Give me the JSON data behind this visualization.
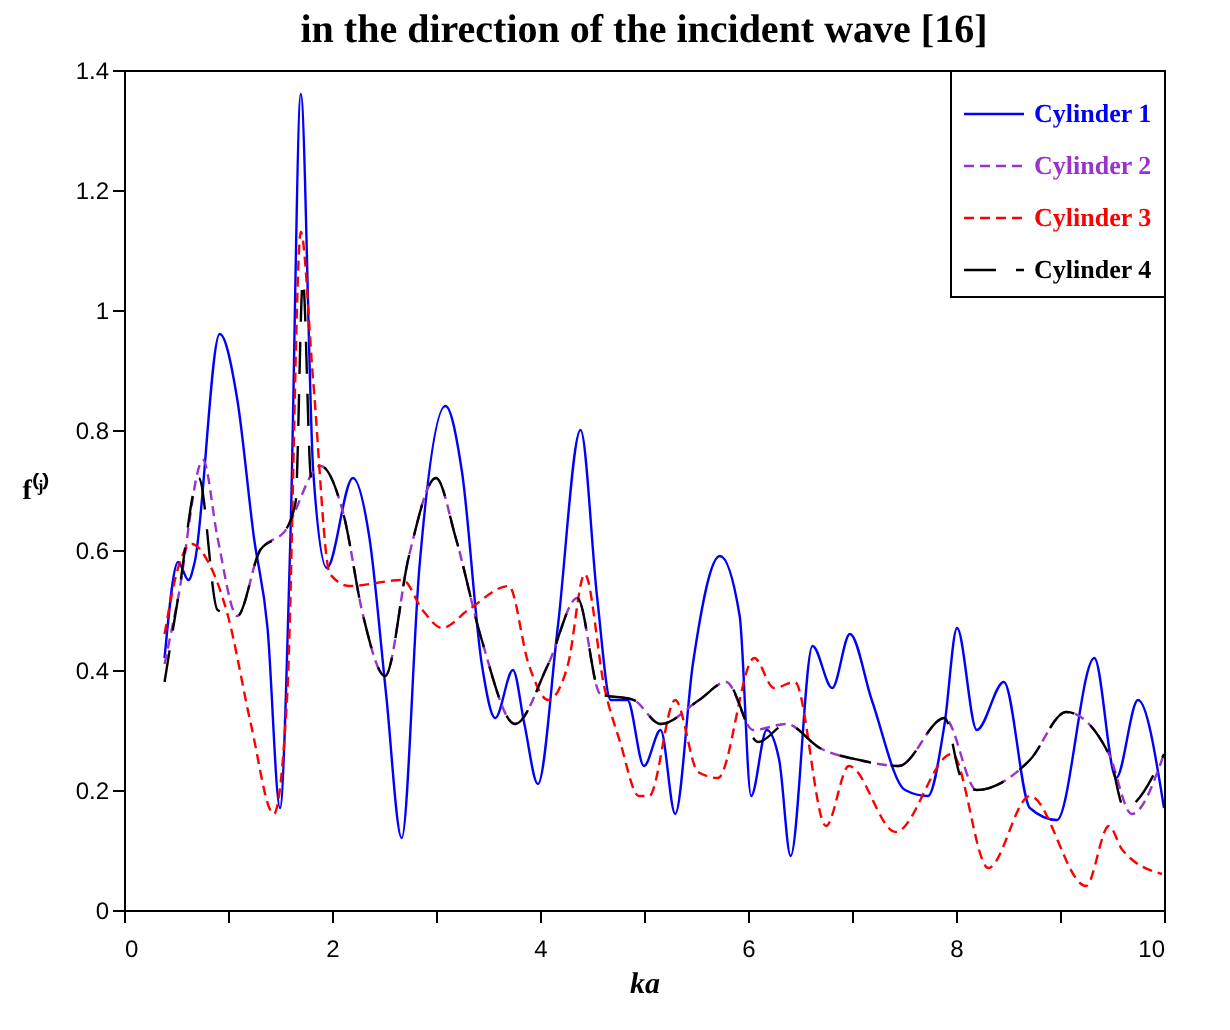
{
  "chart_data": {
    "type": "line",
    "title": "in the direction of the incident wave [16]",
    "xlabel": "ka",
    "ylabel": "f⁽ʲ⁾",
    "xlim": [
      0,
      10
    ],
    "ylim": [
      0,
      1.4
    ],
    "xticks": [
      0,
      {
        "value": 1,
        "label": null
      },
      2,
      {
        "value": 3,
        "label": null
      },
      4,
      {
        "value": 5,
        "label": null
      },
      6,
      {
        "value": 7,
        "label": null
      },
      8,
      {
        "value": 9,
        "label": null
      },
      10
    ],
    "yticks": [
      0,
      0.2,
      0.4,
      0.6,
      0.8,
      1,
      1.2,
      1.4
    ],
    "grid": false,
    "legend": "top right",
    "series": [
      {
        "name": "Cylinder 1",
        "color": "#0000ff",
        "line_style": "solid",
        "x": [
          0.39,
          0.52,
          0.62,
          0.68,
          0.92,
          1.09,
          1.25,
          1.38,
          1.5,
          1.6,
          1.7,
          1.82,
          1.95,
          2.2,
          2.36,
          2.52,
          2.67,
          2.84,
          3.09,
          3.25,
          3.44,
          3.57,
          3.74,
          3.85,
          3.98,
          4.17,
          4.39,
          4.55,
          4.68,
          4.84,
          5.0,
          5.16,
          5.3,
          5.47,
          5.73,
          5.92,
          6.03,
          6.18,
          6.3,
          6.41,
          6.62,
          6.81,
          6.98,
          7.19,
          7.51,
          7.73,
          7.89,
          8.01,
          8.2,
          8.46,
          8.71,
          8.97,
          9.33,
          9.54,
          9.75,
          10
        ],
        "values": [
          0.42,
          0.58,
          0.55,
          0.58,
          0.96,
          0.85,
          0.62,
          0.47,
          0.17,
          0.62,
          1.36,
          0.73,
          0.57,
          0.72,
          0.62,
          0.36,
          0.12,
          0.57,
          0.84,
          0.73,
          0.41,
          0.32,
          0.4,
          0.31,
          0.21,
          0.47,
          0.8,
          0.52,
          0.35,
          0.35,
          0.24,
          0.3,
          0.16,
          0.41,
          0.59,
          0.49,
          0.19,
          0.3,
          0.25,
          0.09,
          0.44,
          0.37,
          0.46,
          0.35,
          0.2,
          0.19,
          0.31,
          0.47,
          0.3,
          0.38,
          0.17,
          0.15,
          0.42,
          0.22,
          0.35,
          0.17
        ]
      },
      {
        "name": "Cylinder 2",
        "color": "#9933cc",
        "line_style": "dashed",
        "x": [
          0.39,
          0.52,
          0.76,
          0.9,
          1.09,
          1.31,
          1.54,
          1.89,
          2.11,
          2.3,
          2.51,
          2.74,
          3.0,
          3.19,
          3.44,
          3.76,
          4.08,
          4.36,
          4.58,
          4.9,
          5.16,
          5.53,
          5.79,
          6.05,
          6.37,
          6.69,
          7.07,
          7.45,
          7.89,
          8.2,
          8.71,
          9.06,
          9.47,
          9.69,
          10
        ],
        "values": [
          0.41,
          0.52,
          0.75,
          0.62,
          0.49,
          0.6,
          0.63,
          0.74,
          0.66,
          0.49,
          0.39,
          0.59,
          0.72,
          0.62,
          0.45,
          0.31,
          0.41,
          0.52,
          0.36,
          0.35,
          0.31,
          0.35,
          0.38,
          0.3,
          0.31,
          0.27,
          0.25,
          0.24,
          0.32,
          0.2,
          0.25,
          0.33,
          0.26,
          0.16,
          0.26
        ]
      },
      {
        "name": "Cylinder 3",
        "color": "#ff0000",
        "line_style": "dashed",
        "x": [
          0.39,
          0.52,
          0.65,
          0.81,
          1.0,
          1.22,
          1.44,
          1.57,
          1.7,
          1.82,
          1.98,
          2.17,
          2.68,
          2.87,
          3.06,
          3.31,
          3.7,
          3.89,
          4.08,
          4.27,
          4.43,
          4.62,
          4.77,
          4.95,
          5.05,
          5.3,
          5.52,
          5.71,
          6.06,
          6.25,
          6.45,
          6.75,
          6.97,
          7.42,
          7.96,
          8.31,
          8.71,
          9.25,
          9.47,
          9.6,
          9.98
        ],
        "values": [
          0.46,
          0.57,
          0.61,
          0.58,
          0.49,
          0.31,
          0.16,
          0.36,
          1.13,
          0.88,
          0.56,
          0.54,
          0.55,
          0.5,
          0.47,
          0.5,
          0.54,
          0.41,
          0.35,
          0.41,
          0.56,
          0.37,
          0.28,
          0.19,
          0.19,
          0.35,
          0.23,
          0.22,
          0.42,
          0.37,
          0.38,
          0.14,
          0.24,
          0.13,
          0.26,
          0.07,
          0.19,
          0.04,
          0.14,
          0.1,
          0.06
        ]
      },
      {
        "name": "Cylinder 4",
        "color": "#000000",
        "line_style": "longdash",
        "x": [
          0.39,
          0.52,
          0.72,
          0.9,
          1.09,
          1.31,
          1.54,
          1.65,
          1.72,
          1.8,
          1.89,
          2.11,
          2.3,
          2.51,
          2.74,
          3.0,
          3.19,
          3.44,
          3.76,
          4.08,
          4.36,
          4.58,
          4.9,
          5.16,
          5.53,
          5.79,
          6.1,
          6.37,
          6.69,
          7.07,
          7.45,
          7.89,
          8.05,
          8.2,
          8.71,
          9.06,
          9.47,
          9.62,
          10
        ],
        "values": [
          0.38,
          0.52,
          0.72,
          0.5,
          0.49,
          0.6,
          0.63,
          0.68,
          1.05,
          0.72,
          0.74,
          0.66,
          0.49,
          0.39,
          0.59,
          0.72,
          0.62,
          0.45,
          0.31,
          0.41,
          0.52,
          0.36,
          0.35,
          0.31,
          0.35,
          0.38,
          0.28,
          0.31,
          0.27,
          0.25,
          0.24,
          0.32,
          0.22,
          0.2,
          0.25,
          0.33,
          0.26,
          0.17,
          0.26
        ]
      }
    ]
  }
}
